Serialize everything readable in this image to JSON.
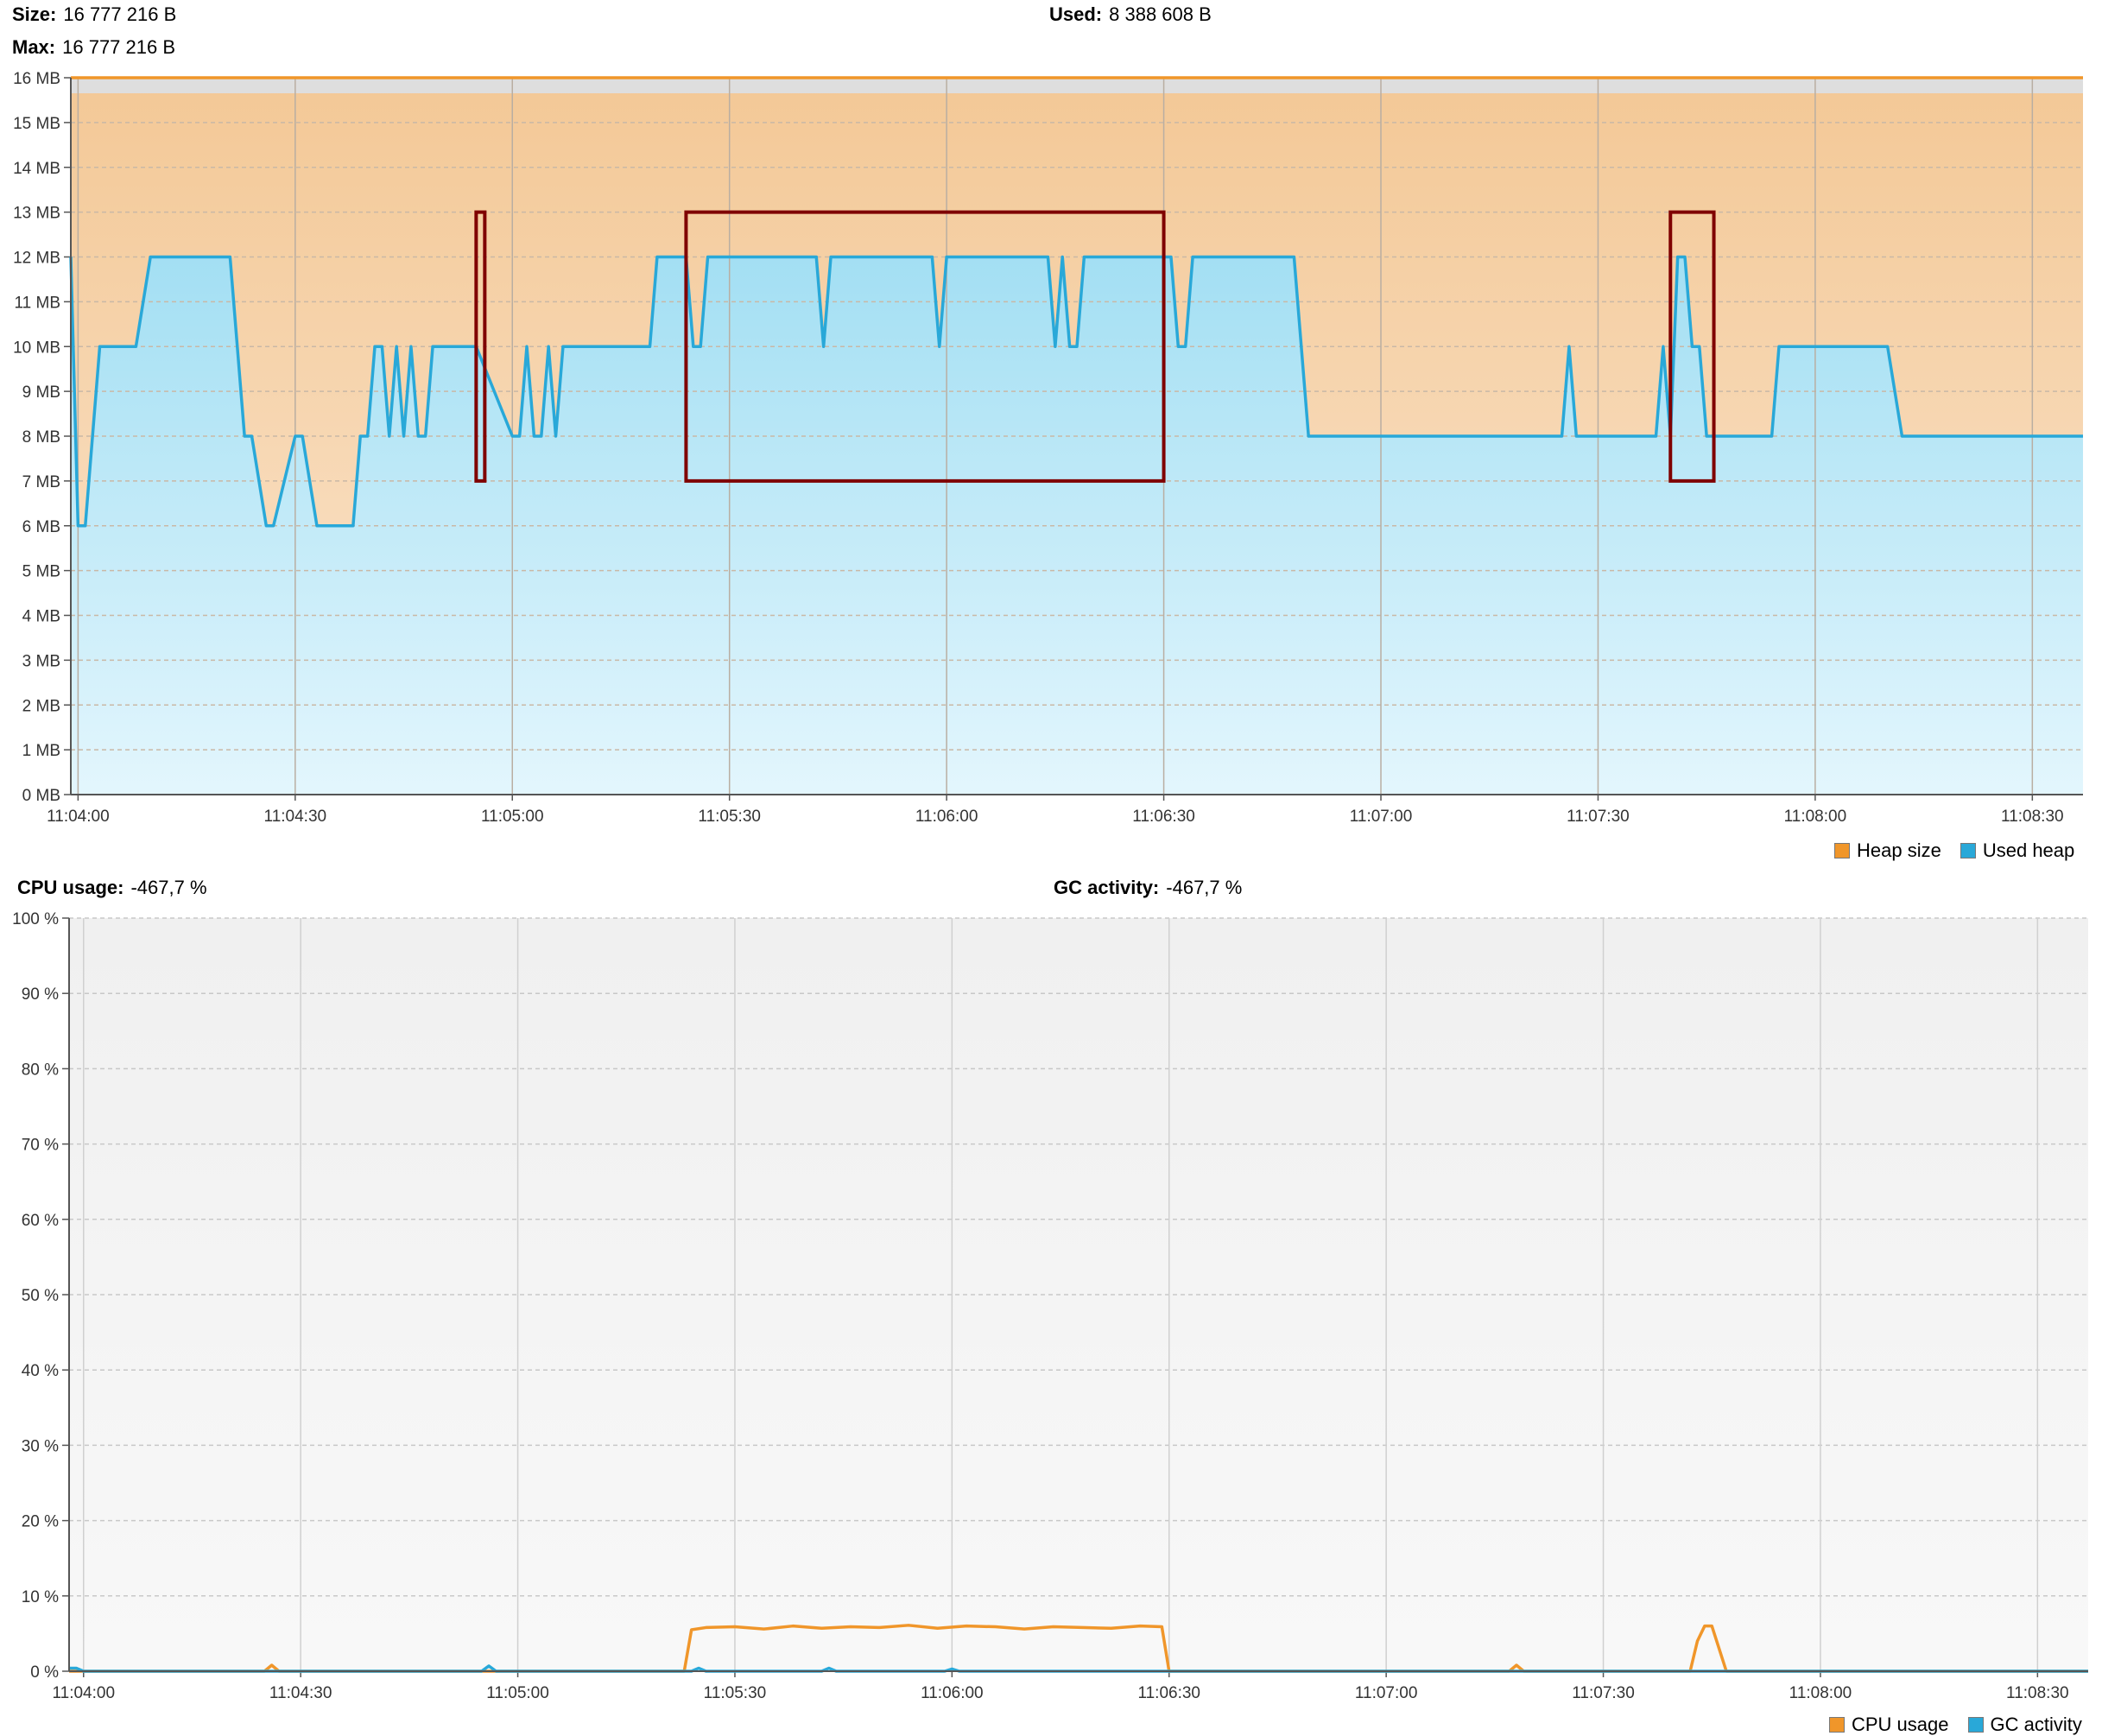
{
  "heap_panel": {
    "size_label": "Size:",
    "size_value": "16 777 216 B",
    "max_label": "Max:",
    "max_value": "16 777 216 B",
    "used_label": "Used:",
    "used_value": "8 388 608 B"
  },
  "cpu_panel": {
    "cpu_label": "CPU usage:",
    "cpu_value": "-467,7 %",
    "gc_label": "GC activity:",
    "gc_value": "-467,7 %"
  },
  "colors": {
    "heap_size": "#f0962a",
    "used_heap": "#29a8d8",
    "highlight_box": "#7f0000"
  },
  "chart_data": [
    {
      "type": "area",
      "x_unit": "time",
      "ylim": [
        0,
        16
      ],
      "y_ticks": [
        "0 MB",
        "1 MB",
        "2 MB",
        "3 MB",
        "4 MB",
        "5 MB",
        "6 MB",
        "7 MB",
        "8 MB",
        "9 MB",
        "10 MB",
        "11 MB",
        "12 MB",
        "13 MB",
        "14 MB",
        "15 MB",
        "16 MB"
      ],
      "x_ticks": [
        "11:04:00",
        "11:04:30",
        "11:05:00",
        "11:05:30",
        "11:06:00",
        "11:06:30",
        "11:07:00",
        "11:07:30",
        "11:08:00",
        "11:08:30"
      ],
      "x_range": [
        "11:03:59",
        "11:08:37"
      ],
      "grid": true,
      "legend": "bottom-right",
      "series": [
        {
          "name": "Heap size",
          "color": "#f0962a",
          "x": [
            "11:03:59",
            "11:08:37"
          ],
          "values": [
            16,
            16
          ]
        },
        {
          "name": "Used heap",
          "color": "#29a8d8",
          "x": [
            "11:03:59",
            "11:04:00",
            "11:04:01",
            "11:04:03",
            "11:04:08",
            "11:04:10",
            "11:04:21",
            "11:04:22",
            "11:04:23",
            "11:04:24",
            "11:04:26",
            "11:04:27",
            "11:04:30",
            "11:04:31",
            "11:04:33",
            "11:04:38",
            "11:04:39",
            "11:04:40",
            "11:04:41",
            "11:04:42",
            "11:04:43",
            "11:04:44",
            "11:04:45",
            "11:04:46",
            "11:04:47",
            "11:04:48",
            "11:04:49",
            "11:04:50",
            "11:04:51",
            "11:04:52",
            "11:04:53",
            "11:04:55",
            "11:05:00",
            "11:05:01",
            "11:05:02",
            "11:05:03",
            "11:05:04",
            "11:05:05",
            "11:05:06",
            "11:05:07",
            "11:05:08",
            "11:05:09",
            "11:05:10",
            "11:05:19",
            "11:05:20",
            "11:05:24",
            "11:05:25",
            "11:05:26",
            "11:05:27",
            "11:05:28",
            "11:05:42",
            "11:05:43",
            "11:05:44",
            "11:05:58",
            "11:05:59",
            "11:06:00",
            "11:06:14",
            "11:06:15",
            "11:06:16",
            "11:06:17",
            "11:06:18",
            "11:06:19",
            "11:06:31",
            "11:06:32",
            "11:06:33",
            "11:06:34",
            "11:06:48",
            "11:06:50",
            "11:07:25",
            "11:07:26",
            "11:07:27",
            "11:07:38",
            "11:07:39",
            "11:07:40",
            "11:07:41",
            "11:07:42",
            "11:07:43",
            "11:07:44",
            "11:07:45",
            "11:07:46",
            "11:07:47",
            "11:07:49",
            "11:07:54",
            "11:07:55",
            "11:08:10",
            "11:08:12",
            "11:08:37"
          ],
          "values": [
            12,
            6,
            6,
            10,
            10,
            12,
            12,
            10,
            8,
            8,
            6,
            6,
            8,
            8,
            6,
            6,
            8,
            8,
            10,
            10,
            8,
            10,
            8,
            10,
            8,
            8,
            10,
            10,
            10,
            10,
            10,
            10,
            8,
            8,
            10,
            8,
            8,
            10,
            8,
            10,
            10,
            10,
            10,
            10,
            12,
            12,
            10,
            10,
            12,
            12,
            12,
            10,
            12,
            12,
            10,
            12,
            12,
            10,
            12,
            10,
            10,
            12,
            12,
            10,
            10,
            12,
            12,
            8,
            8,
            10,
            8,
            8,
            10,
            8,
            12,
            12,
            10,
            10,
            8,
            8,
            8,
            8,
            8,
            10,
            10,
            8,
            8
          ]
        }
      ],
      "annotations": [
        {
          "kind": "highlight-box",
          "from": "11:04:55",
          "to": "11:04:56",
          "ylim": [
            7,
            13
          ]
        },
        {
          "kind": "highlight-box",
          "from": "11:05:24",
          "to": "11:06:30",
          "ylim": [
            7,
            13
          ]
        },
        {
          "kind": "highlight-box",
          "from": "11:07:40",
          "to": "11:07:46",
          "ylim": [
            7,
            13
          ]
        }
      ]
    },
    {
      "type": "line",
      "x_unit": "time",
      "ylim": [
        0,
        100
      ],
      "y_ticks": [
        "0 %",
        "10 %",
        "20 %",
        "30 %",
        "40 %",
        "50 %",
        "60 %",
        "70 %",
        "80 %",
        "90 %",
        "100 %"
      ],
      "x_ticks": [
        "11:04:00",
        "11:04:30",
        "11:05:00",
        "11:05:30",
        "11:06:00",
        "11:06:30",
        "11:07:00",
        "11:07:30",
        "11:08:00",
        "11:08:30"
      ],
      "x_range": [
        "11:03:58",
        "11:08:37"
      ],
      "grid": true,
      "legend": "bottom-right",
      "series": [
        {
          "name": "CPU usage",
          "color": "#f0962a",
          "x": [
            "11:03:58",
            "11:04:25",
            "11:04:26",
            "11:04:27",
            "11:05:23",
            "11:05:24",
            "11:05:26",
            "11:05:30",
            "11:05:34",
            "11:05:38",
            "11:05:42",
            "11:05:46",
            "11:05:50",
            "11:05:54",
            "11:05:58",
            "11:06:02",
            "11:06:06",
            "11:06:10",
            "11:06:14",
            "11:06:18",
            "11:06:22",
            "11:06:26",
            "11:06:29",
            "11:06:30",
            "11:07:17",
            "11:07:18",
            "11:07:19",
            "11:07:42",
            "11:07:43",
            "11:07:44",
            "11:07:45",
            "11:07:47",
            "11:08:37"
          ],
          "values": [
            0,
            0,
            0.8,
            0,
            0,
            5.5,
            5.8,
            5.9,
            5.6,
            6.0,
            5.7,
            5.9,
            5.8,
            6.1,
            5.7,
            6.0,
            5.9,
            5.6,
            5.9,
            5.8,
            5.7,
            6.0,
            5.9,
            0,
            0,
            0.8,
            0,
            0,
            4,
            6,
            6,
            0,
            0
          ]
        },
        {
          "name": "GC activity",
          "color": "#29a8d8",
          "x": [
            "11:03:58",
            "11:03:59",
            "11:04:00",
            "11:04:55",
            "11:04:56",
            "11:04:57",
            "11:05:24",
            "11:05:25",
            "11:05:26",
            "11:05:42",
            "11:05:43",
            "11:05:44",
            "11:05:59",
            "11:06:00",
            "11:06:01",
            "11:08:37"
          ],
          "values": [
            0.4,
            0.4,
            0,
            0,
            0.7,
            0,
            0,
            0.4,
            0,
            0,
            0.4,
            0,
            0,
            0.3,
            0,
            0
          ]
        }
      ]
    }
  ]
}
